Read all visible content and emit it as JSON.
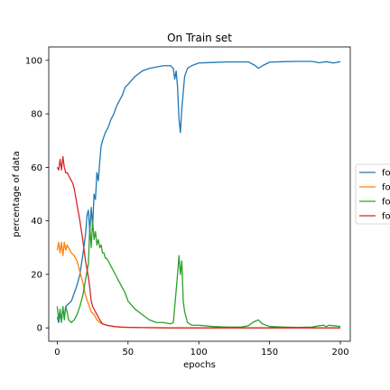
{
  "chart_data": {
    "type": "line",
    "title": "On Train set",
    "xlabel": "epochs",
    "ylabel": "percentage of data",
    "xlim": [
      -6,
      207
    ],
    "ylim": [
      -5,
      105
    ],
    "xticks": [
      0,
      50,
      100,
      150,
      200
    ],
    "yticks": [
      0,
      20,
      40,
      60,
      80,
      100
    ],
    "grid": false,
    "legend_position": "right, outside plot (clipped)",
    "legend_entries": [
      "fo",
      "fo",
      "fo",
      "fo"
    ],
    "series": [
      {
        "color": "#1f77b4",
        "x": [
          0,
          1,
          2,
          3,
          4,
          5,
          6,
          8,
          10,
          12,
          14,
          16,
          18,
          20,
          21,
          22,
          23,
          24,
          25,
          26,
          27,
          28,
          29,
          30,
          31,
          32,
          34,
          36,
          38,
          40,
          42,
          44,
          46,
          48,
          50,
          55,
          60,
          65,
          70,
          75,
          80,
          82,
          83,
          84,
          85,
          86,
          87,
          88,
          89,
          90,
          92,
          95,
          100,
          110,
          120,
          130,
          135,
          140,
          142,
          145,
          150,
          160,
          170,
          180,
          185,
          190,
          195,
          200
        ],
        "y": [
          4,
          2,
          5,
          3,
          7,
          4,
          8,
          9,
          10,
          13,
          16,
          20,
          27,
          35,
          42,
          44,
          36,
          45,
          38,
          50,
          48,
          58,
          55,
          62,
          68,
          70,
          73,
          75,
          78,
          80,
          83,
          85,
          87,
          90,
          91,
          94,
          96,
          97,
          97.5,
          98,
          98,
          97,
          93,
          96,
          90,
          78,
          73,
          82,
          88,
          94,
          97,
          98,
          99,
          99.2,
          99.4,
          99.4,
          99.4,
          98,
          97,
          98,
          99.3,
          99.5,
          99.6,
          99.6,
          99.1,
          99.5,
          99,
          99.5
        ]
      },
      {
        "color": "#ff7f0e",
        "x": [
          0,
          1,
          2,
          3,
          4,
          5,
          6,
          7,
          8,
          9,
          10,
          12,
          14,
          16,
          18,
          20,
          22,
          24,
          26,
          28,
          30,
          32,
          35,
          40,
          45,
          50,
          60,
          80,
          100,
          120,
          150,
          200
        ],
        "y": [
          29,
          32,
          28,
          32,
          27,
          32,
          29,
          31,
          30,
          29,
          28,
          27,
          25,
          21,
          17,
          12,
          9,
          6,
          5,
          3,
          2,
          1.5,
          1,
          0.5,
          0.3,
          0.2,
          0.1,
          0,
          0,
          0,
          0,
          0
        ]
      },
      {
        "color": "#2ca02c",
        "x": [
          0,
          1,
          2,
          3,
          4,
          5,
          6,
          7,
          8,
          10,
          12,
          14,
          16,
          18,
          20,
          22,
          23,
          24,
          25,
          26,
          27,
          28,
          29,
          30,
          31,
          32,
          33,
          34,
          35,
          36,
          38,
          40,
          42,
          44,
          46,
          48,
          50,
          55,
          60,
          65,
          70,
          75,
          80,
          82,
          83,
          84,
          85,
          86,
          87,
          88,
          89,
          90,
          92,
          95,
          100,
          110,
          120,
          130,
          135,
          138,
          140,
          142,
          145,
          150,
          160,
          170,
          180,
          185,
          188,
          190,
          192,
          195,
          200
        ],
        "y": [
          8,
          3,
          7,
          2,
          8,
          3,
          8,
          6,
          3,
          2,
          3,
          5,
          8,
          12,
          18,
          24,
          38,
          30,
          40,
          33,
          36,
          31,
          33,
          30,
          31,
          28,
          28,
          26,
          26,
          25,
          23,
          21,
          19,
          17,
          15,
          13,
          10,
          7,
          5,
          3,
          2,
          2,
          1.5,
          2,
          8,
          14,
          20,
          27,
          20,
          25,
          10,
          6,
          2,
          1,
          1,
          0.5,
          0.3,
          0.3,
          0.8,
          2,
          2.5,
          3,
          1.5,
          0.5,
          0.3,
          0.2,
          0.3,
          0.8,
          1,
          0.5,
          1,
          0.8,
          0.5
        ]
      },
      {
        "color": "#d62728",
        "x": [
          0,
          1,
          2,
          3,
          4,
          5,
          6,
          7,
          8,
          9,
          10,
          11,
          12,
          14,
          16,
          18,
          20,
          22,
          23,
          24,
          25,
          26,
          28,
          30,
          32,
          35,
          40,
          45,
          50,
          60,
          80,
          100,
          150,
          200
        ],
        "y": [
          60,
          59,
          63,
          59,
          64,
          60,
          58,
          58,
          57,
          56,
          55,
          54,
          52,
          46,
          40,
          33,
          25,
          19,
          15,
          10,
          8,
          7,
          5,
          3,
          1.5,
          1,
          0.5,
          0.3,
          0.2,
          0.1,
          0,
          0,
          0,
          0
        ]
      }
    ]
  }
}
